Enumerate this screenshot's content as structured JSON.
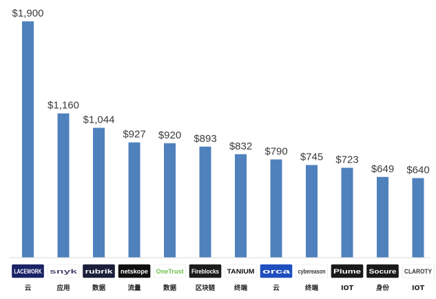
{
  "chart_data": {
    "type": "bar",
    "title": "",
    "xlabel": "",
    "ylabel": "",
    "ylim": [
      0,
      1900
    ],
    "grid": false,
    "bar_color": "#4f81bd",
    "categories": [
      "云",
      "应用",
      "数据",
      "流量",
      "数据",
      "区块链",
      "终端",
      "云",
      "终端",
      "IOT",
      "身份",
      "IOT"
    ],
    "value_labels": [
      "$1,900",
      "$1,160",
      "$1,044",
      "$927",
      "$920",
      "$893",
      "$832",
      "$790",
      "$745",
      "$723",
      "$649",
      "$640"
    ],
    "values": [
      1900,
      1160,
      1044,
      927,
      920,
      893,
      832,
      790,
      745,
      723,
      649,
      640
    ],
    "logos": [
      {
        "text": "LACEWORK",
        "bg": "#1a2366",
        "fg": "#ffffff"
      },
      {
        "text": "snyk",
        "bg": "#ffffff",
        "fg": "#4c4a73"
      },
      {
        "text": "rubrik",
        "bg": "#1b1f3b",
        "fg": "#ffffff"
      },
      {
        "text": "netskope",
        "bg": "#101010",
        "fg": "#ffffff"
      },
      {
        "text": "OneTrust",
        "bg": "#ffffff",
        "fg": "#6cc04a"
      },
      {
        "text": "Fireblocks",
        "bg": "#1c1c1c",
        "fg": "#ffffff"
      },
      {
        "text": "TANIUM",
        "bg": "#ffffff",
        "fg": "#111111"
      },
      {
        "text": "orca",
        "bg": "#1f4fbf",
        "fg": "#ffffff"
      },
      {
        "text": "cybereason",
        "bg": "#ffffff",
        "fg": "#333333"
      },
      {
        "text": "Plume",
        "bg": "#1a1a1a",
        "fg": "#ffffff"
      },
      {
        "text": "Socure",
        "bg": "#1a1a1a",
        "fg": "#ffffff"
      },
      {
        "text": "CLAROTY",
        "bg": "#ffffff",
        "fg": "#333333"
      }
    ]
  }
}
